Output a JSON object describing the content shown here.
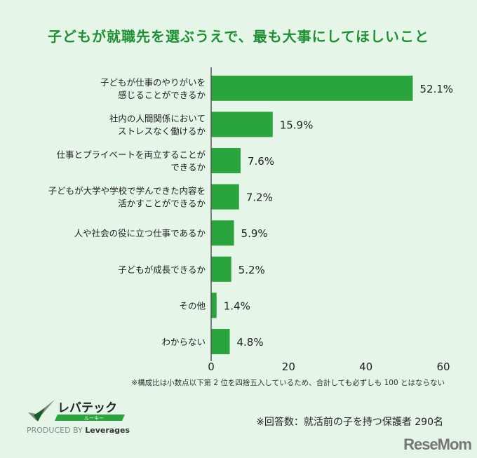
{
  "chart_data": {
    "type": "bar",
    "orientation": "horizontal",
    "title": "子どもが就職先を選ぶうえで、最も大事にしてほしいこと",
    "categories": [
      [
        "子どもが仕事のやりがいを",
        "感じることができるか"
      ],
      [
        "社内の人間関係において",
        "ストレスなく働けるか"
      ],
      [
        "仕事とプライベートを両立することが",
        "できるか"
      ],
      [
        "子どもが大学や学校で学んできた内容を",
        "活かすことができるか"
      ],
      [
        "人や社会の役に立つ仕事であるか"
      ],
      [
        "子どもが成長できるか"
      ],
      [
        "その他"
      ],
      [
        "わからない"
      ]
    ],
    "values": [
      52.1,
      15.9,
      7.6,
      7.2,
      5.9,
      5.2,
      1.4,
      4.8
    ],
    "data_labels": [
      "52.1%",
      "15.9%",
      "7.6%",
      "7.2%",
      "5.9%",
      "5.2%",
      "1.4%",
      "4.8%"
    ],
    "xlim": [
      0,
      60
    ],
    "xticks": [
      "0",
      "20",
      "40",
      "60"
    ],
    "grid": false,
    "bar_color": "#2aa43c"
  },
  "title_color": "#1f8f33",
  "note": "※構成比は小数点以下第 2 位を四捨五入しているため、合計しても必ずしも 100 とはならない",
  "respondents": "※回答数：就活前の子を持つ保護者 290名",
  "logo": {
    "name": "レバテック",
    "sub": "ルーキー",
    "produced_by": "PRODUCED BY",
    "brand": "Leverages"
  },
  "watermark": "ReseMom"
}
